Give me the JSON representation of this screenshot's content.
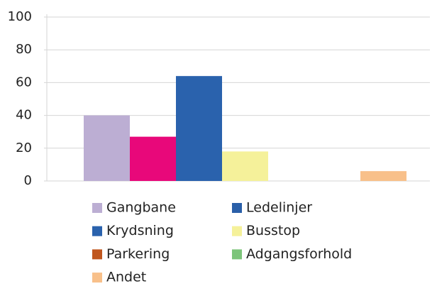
{
  "chart_data": {
    "type": "bar",
    "categories": [
      null
    ],
    "series": [
      {
        "name": "Gangbane",
        "color": "#bcaed3",
        "values": [
          40
        ]
      },
      {
        "name": "Ledelinjer",
        "color": "#e8087a",
        "legend_color": "#2a5fa8",
        "values": [
          27
        ]
      },
      {
        "name": "Krydsning",
        "color": "#2a62ad",
        "values": [
          64
        ]
      },
      {
        "name": "Busstop",
        "color": "#f5f19a",
        "values": [
          18
        ]
      },
      {
        "name": "Parkering",
        "color": "#c0561e",
        "values": [
          0
        ]
      },
      {
        "name": "Adgangsforhold",
        "color": "#7cc47a",
        "values": [
          0
        ]
      },
      {
        "name": "Andet",
        "color": "#f8c08a",
        "values": [
          6
        ]
      }
    ],
    "ylim": [
      0,
      100
    ],
    "yticks": [
      0,
      20,
      40,
      60,
      80,
      100
    ],
    "grid": true,
    "legend": "bottom"
  }
}
